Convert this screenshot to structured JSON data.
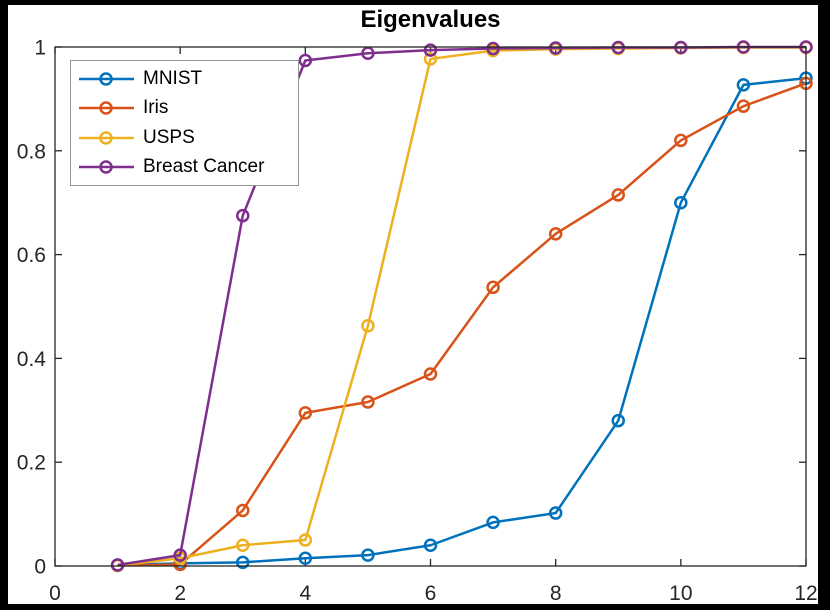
{
  "window": {
    "frame_color": "#000000",
    "canvas_color": "#ffffff"
  },
  "chart_data": {
    "type": "line",
    "title": "Eigenvalues",
    "xlabel": "",
    "ylabel": "",
    "xlim": [
      0,
      12
    ],
    "ylim": [
      0,
      1
    ],
    "x_ticks": [
      0,
      2,
      4,
      6,
      8,
      10,
      12
    ],
    "y_ticks": [
      0,
      0.2,
      0.4,
      0.6,
      0.8,
      1
    ],
    "grid": false,
    "legend_position": "top-left",
    "marker": "circle",
    "axis_color": "#262626",
    "line_width": 2.5,
    "x": [
      1,
      2,
      3,
      4,
      5,
      6,
      7,
      8,
      9,
      10,
      11,
      12
    ],
    "series": [
      {
        "name": "MNIST",
        "color": "#0072BD",
        "values": [
          0.002,
          0.005,
          0.007,
          0.015,
          0.021,
          0.04,
          0.084,
          0.102,
          0.28,
          0.7,
          0.927,
          0.94
        ]
      },
      {
        "name": "Iris",
        "color": "#D95319",
        "values": [
          0.001,
          0.003,
          0.107,
          0.295,
          0.316,
          0.37,
          0.537,
          0.64,
          0.715,
          0.82,
          0.886,
          0.93
        ]
      },
      {
        "name": "USPS",
        "color": "#EDB120",
        "values": [
          0.001,
          0.015,
          0.04,
          0.05,
          0.463,
          0.977,
          0.993,
          0.996,
          0.997,
          0.998,
          0.999,
          0.999
        ]
      },
      {
        "name": "Breast Cancer",
        "color": "#7E2F8E",
        "values": [
          0.002,
          0.021,
          0.675,
          0.974,
          0.988,
          0.994,
          0.997,
          0.998,
          0.999,
          0.999,
          1.0,
          1.0
        ]
      }
    ]
  }
}
